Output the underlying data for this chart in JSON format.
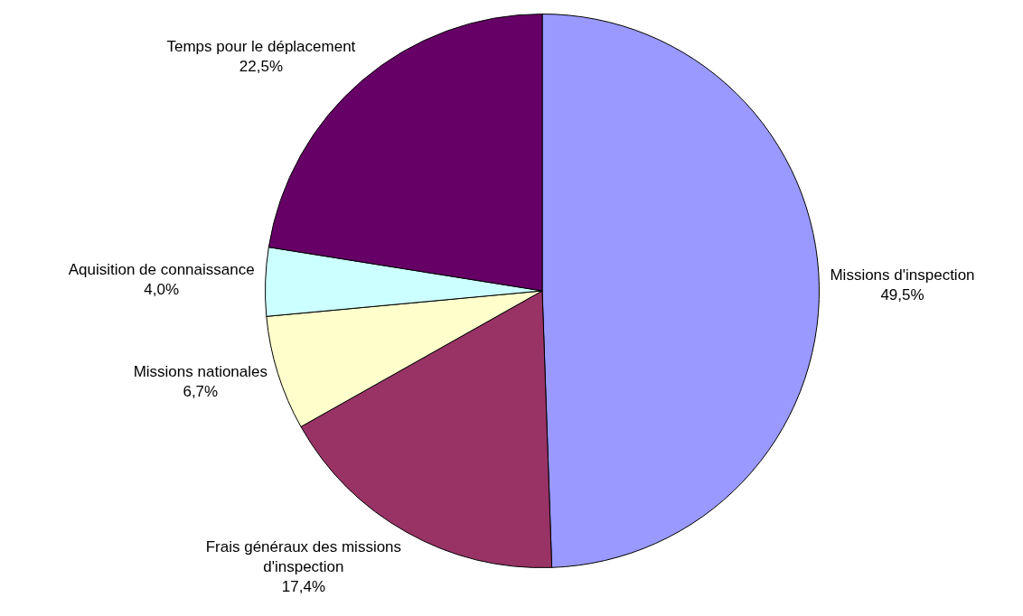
{
  "chart_data": {
    "type": "pie",
    "categories": [
      "Missions d'inspection",
      "Frais généraux des missions d'inspection",
      "Missions nationales",
      "Aquisition de connaissance",
      "Temps pour le déplacement"
    ],
    "values": [
      49.5,
      17.4,
      6.7,
      4.0,
      22.5
    ],
    "value_labels": [
      "49,5%",
      "17,4%",
      "6,7%",
      "4,0%",
      "22,5%"
    ],
    "colors": [
      "#9999ff",
      "#993366",
      "#ffffcc",
      "#ccffff",
      "#660066"
    ],
    "legend": false
  }
}
